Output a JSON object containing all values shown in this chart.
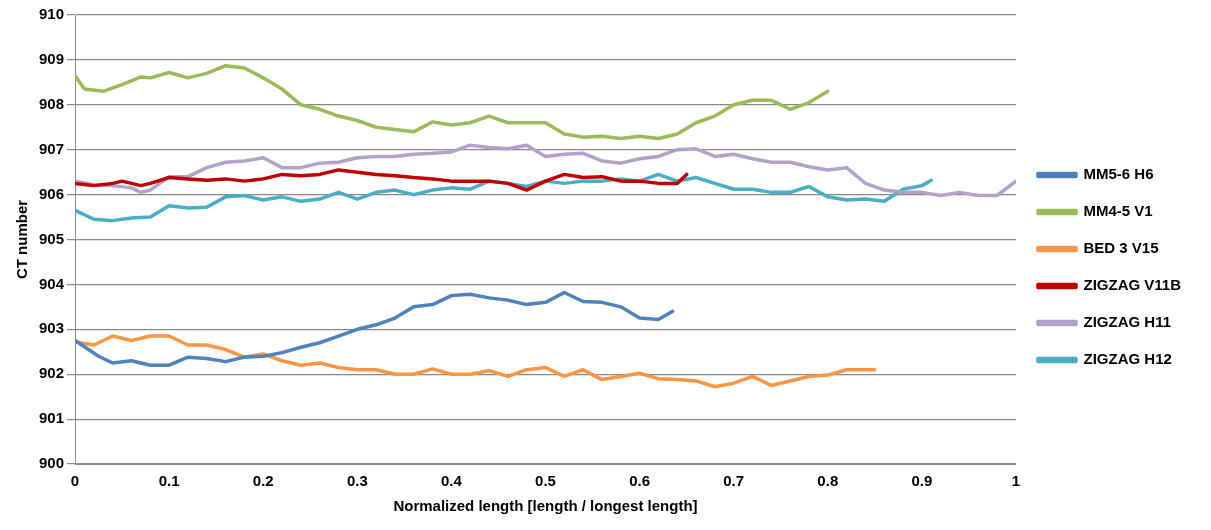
{
  "chart_data": {
    "type": "line",
    "xlabel": "Normalized length [length / longest length]",
    "ylabel": "CT number",
    "xlim": [
      0,
      1
    ],
    "xticks": [
      0,
      0.1,
      0.2,
      0.3,
      0.4,
      0.5,
      0.6,
      0.7,
      0.8,
      0.9,
      1
    ],
    "ylim": [
      900,
      910
    ],
    "yticks": [
      900,
      901,
      902,
      903,
      904,
      905,
      906,
      907,
      908,
      909,
      910
    ],
    "grid": "y",
    "legend": "right",
    "marker": "none",
    "line_style": "solid",
    "series": [
      {
        "name": "MM5-6 H6",
        "color": "#4f81bd",
        "x": [
          0,
          0.025,
          0.04,
          0.06,
          0.08,
          0.1,
          0.12,
          0.14,
          0.16,
          0.18,
          0.2,
          0.22,
          0.24,
          0.26,
          0.28,
          0.3,
          0.32,
          0.34,
          0.36,
          0.38,
          0.4,
          0.42,
          0.44,
          0.46,
          0.48,
          0.5,
          0.52,
          0.54,
          0.56,
          0.58,
          0.6,
          0.62,
          0.635
        ],
        "values": [
          902.75,
          902.4,
          902.25,
          902.3,
          902.2,
          902.2,
          902.38,
          902.35,
          902.28,
          902.38,
          902.4,
          902.48,
          902.6,
          902.7,
          902.85,
          903.0,
          903.1,
          903.25,
          903.5,
          903.55,
          903.75,
          903.78,
          903.7,
          903.65,
          903.55,
          903.6,
          903.82,
          903.62,
          903.6,
          903.5,
          903.25,
          903.22,
          903.4
        ]
      },
      {
        "name": "MM4-5 V1",
        "color": "#9bbb59",
        "x": [
          0,
          0.01,
          0.03,
          0.05,
          0.07,
          0.08,
          0.1,
          0.12,
          0.14,
          0.16,
          0.18,
          0.2,
          0.22,
          0.24,
          0.26,
          0.28,
          0.3,
          0.32,
          0.34,
          0.36,
          0.38,
          0.4,
          0.42,
          0.44,
          0.46,
          0.48,
          0.5,
          0.52,
          0.54,
          0.56,
          0.58,
          0.6,
          0.62,
          0.64,
          0.66,
          0.68,
          0.7,
          0.72,
          0.74,
          0.76,
          0.78,
          0.8
        ],
        "values": [
          908.65,
          908.35,
          908.3,
          908.45,
          908.62,
          908.6,
          908.72,
          908.6,
          908.7,
          908.87,
          908.82,
          908.6,
          908.35,
          908.0,
          907.9,
          907.75,
          907.65,
          907.5,
          907.45,
          907.4,
          907.62,
          907.55,
          907.6,
          907.75,
          907.6,
          907.6,
          907.6,
          907.35,
          907.28,
          907.3,
          907.25,
          907.3,
          907.25,
          907.35,
          907.6,
          907.75,
          908.0,
          908.1,
          908.1,
          907.9,
          908.05,
          908.3
        ]
      },
      {
        "name": "BED 3 V15",
        "color": "#f79646",
        "x": [
          0,
          0.02,
          0.04,
          0.06,
          0.08,
          0.1,
          0.12,
          0.14,
          0.16,
          0.18,
          0.2,
          0.22,
          0.24,
          0.26,
          0.28,
          0.3,
          0.32,
          0.34,
          0.36,
          0.38,
          0.4,
          0.42,
          0.44,
          0.46,
          0.48,
          0.5,
          0.52,
          0.54,
          0.56,
          0.58,
          0.6,
          0.62,
          0.64,
          0.66,
          0.68,
          0.7,
          0.72,
          0.74,
          0.76,
          0.78,
          0.8,
          0.82,
          0.85
        ],
        "values": [
          902.72,
          902.65,
          902.85,
          902.75,
          902.85,
          902.85,
          902.65,
          902.65,
          902.55,
          902.38,
          902.45,
          902.3,
          902.2,
          902.25,
          902.15,
          902.1,
          902.1,
          902.0,
          902.0,
          902.12,
          902.0,
          902.0,
          902.08,
          901.95,
          902.1,
          902.15,
          901.95,
          902.1,
          901.88,
          901.95,
          902.02,
          901.9,
          901.88,
          901.85,
          901.72,
          901.8,
          901.95,
          901.75,
          901.85,
          901.95,
          901.98,
          902.1,
          902.1
        ]
      },
      {
        "name": "ZIGZAG V11B",
        "color": "#c00000",
        "x": [
          0,
          0.02,
          0.04,
          0.05,
          0.07,
          0.08,
          0.1,
          0.12,
          0.14,
          0.16,
          0.18,
          0.2,
          0.22,
          0.24,
          0.26,
          0.28,
          0.3,
          0.32,
          0.34,
          0.36,
          0.38,
          0.4,
          0.42,
          0.44,
          0.46,
          0.48,
          0.5,
          0.52,
          0.54,
          0.56,
          0.58,
          0.6,
          0.62,
          0.64,
          0.65
        ],
        "values": [
          906.25,
          906.2,
          906.25,
          906.3,
          906.2,
          906.25,
          906.38,
          906.35,
          906.32,
          906.35,
          906.3,
          906.35,
          906.45,
          906.42,
          906.45,
          906.55,
          906.5,
          906.45,
          906.42,
          906.38,
          906.35,
          906.3,
          906.3,
          906.3,
          906.25,
          906.1,
          906.3,
          906.45,
          906.38,
          906.4,
          906.3,
          906.3,
          906.25,
          906.25,
          906.45
        ]
      },
      {
        "name": "ZIGZAG H11",
        "color": "#b3a2c7",
        "x": [
          0,
          0.02,
          0.04,
          0.06,
          0.07,
          0.08,
          0.1,
          0.12,
          0.14,
          0.16,
          0.18,
          0.2,
          0.22,
          0.24,
          0.26,
          0.28,
          0.3,
          0.32,
          0.34,
          0.36,
          0.38,
          0.4,
          0.42,
          0.44,
          0.46,
          0.48,
          0.5,
          0.52,
          0.54,
          0.56,
          0.58,
          0.6,
          0.62,
          0.64,
          0.66,
          0.68,
          0.7,
          0.72,
          0.74,
          0.76,
          0.78,
          0.8,
          0.82,
          0.84,
          0.86,
          0.88,
          0.9,
          0.92,
          0.94,
          0.96,
          0.98,
          1
        ],
        "values": [
          906.3,
          906.22,
          906.2,
          906.15,
          906.05,
          906.1,
          906.4,
          906.4,
          906.6,
          906.72,
          906.75,
          906.82,
          906.6,
          906.6,
          906.7,
          906.72,
          906.82,
          906.85,
          906.85,
          906.9,
          906.92,
          906.95,
          907.1,
          907.05,
          907.02,
          907.1,
          906.85,
          906.9,
          906.92,
          906.75,
          906.7,
          906.8,
          906.85,
          907.0,
          907.02,
          906.85,
          906.9,
          906.8,
          906.72,
          906.72,
          906.62,
          906.55,
          906.6,
          906.25,
          906.1,
          906.05,
          906.05,
          905.98,
          906.05,
          905.98,
          905.98,
          906.3
        ]
      },
      {
        "name": "ZIGZAG H12",
        "color": "#4bacc6",
        "x": [
          0,
          0.02,
          0.04,
          0.06,
          0.08,
          0.1,
          0.12,
          0.14,
          0.16,
          0.18,
          0.2,
          0.22,
          0.24,
          0.26,
          0.28,
          0.3,
          0.32,
          0.34,
          0.36,
          0.38,
          0.4,
          0.42,
          0.44,
          0.46,
          0.48,
          0.5,
          0.52,
          0.54,
          0.56,
          0.58,
          0.6,
          0.62,
          0.64,
          0.66,
          0.68,
          0.7,
          0.72,
          0.74,
          0.76,
          0.78,
          0.8,
          0.82,
          0.84,
          0.86,
          0.88,
          0.9,
          0.91
        ],
        "values": [
          905.65,
          905.45,
          905.42,
          905.48,
          905.5,
          905.75,
          905.7,
          905.72,
          905.95,
          905.98,
          905.88,
          905.95,
          905.85,
          905.9,
          906.05,
          905.9,
          906.05,
          906.1,
          906.0,
          906.1,
          906.15,
          906.12,
          906.3,
          906.25,
          906.18,
          906.3,
          906.25,
          906.3,
          906.3,
          906.35,
          906.3,
          906.45,
          906.3,
          906.38,
          906.25,
          906.12,
          906.12,
          906.05,
          906.05,
          906.18,
          905.95,
          905.88,
          905.9,
          905.85,
          906.12,
          906.2,
          906.32
        ]
      }
    ]
  }
}
